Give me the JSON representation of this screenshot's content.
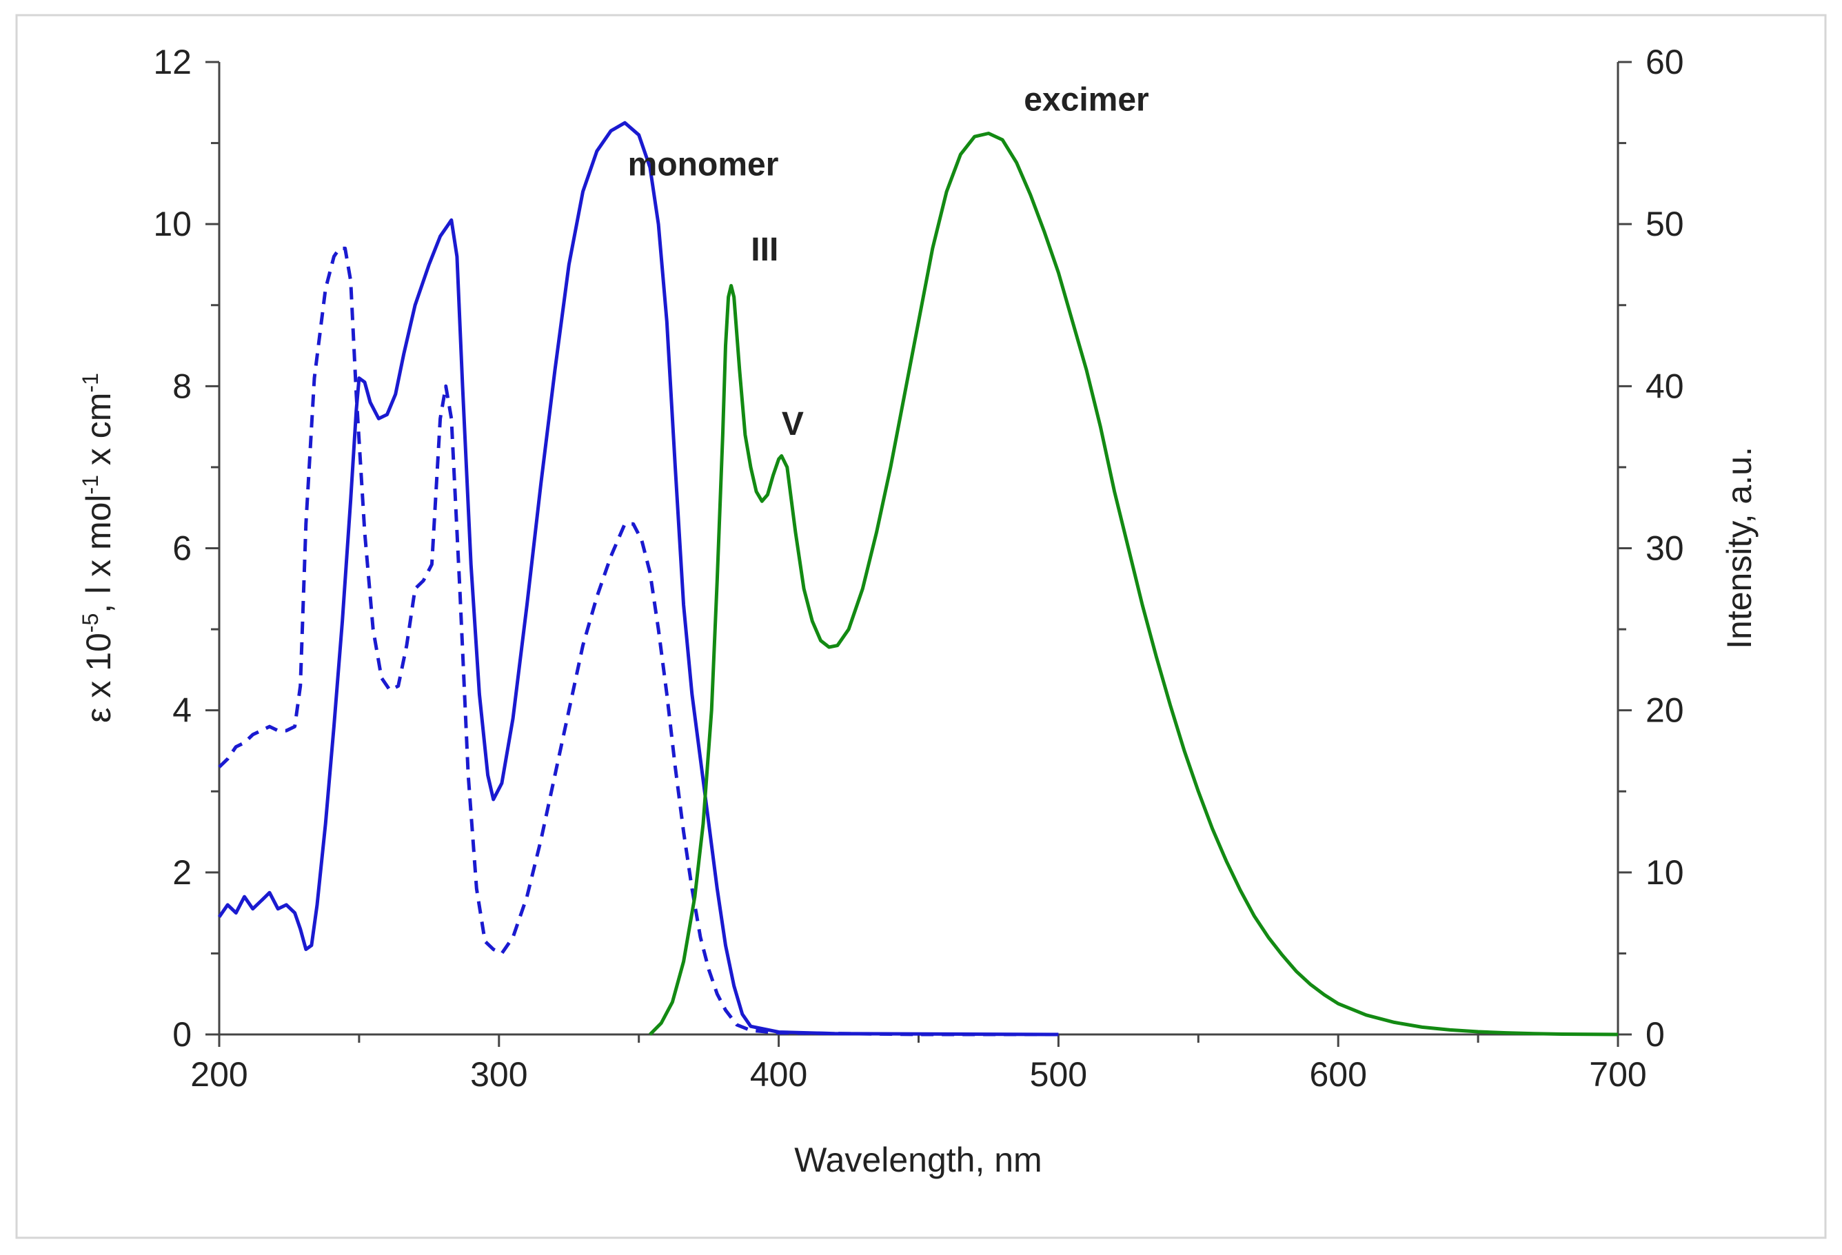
{
  "chart_data": {
    "type": "line",
    "title": "",
    "xlabel": "Wavelength, nm",
    "ylabel_left": "ε x 10",
    "ylabel_left_exp1": "-5",
    "ylabel_left_mid": ", l x mol",
    "ylabel_left_exp2": "-1",
    "ylabel_left_mid2": " x cm",
    "ylabel_left_exp3": "-1",
    "ylabel_right": "Intensity, a.u.",
    "xlim": [
      200,
      700
    ],
    "ylim_left": [
      0,
      12
    ],
    "ylim_right": [
      0,
      60
    ],
    "x_ticks": [
      "200",
      "300",
      "400",
      "500",
      "600",
      "700"
    ],
    "y_ticks_left": [
      "0",
      "2",
      "4",
      "6",
      "8",
      "10",
      "12"
    ],
    "y_ticks_right": [
      "0",
      "10",
      "20",
      "30",
      "40",
      "50",
      "60"
    ],
    "grid": false,
    "legend": "none",
    "colors": {
      "absorption": "#1a1ad0",
      "emission": "#138a13",
      "axis": "#444444"
    },
    "series": [
      {
        "name": "absorption-solid",
        "axis": "left",
        "style": "solid",
        "points": [
          [
            200,
            1.45
          ],
          [
            203,
            1.6
          ],
          [
            206,
            1.5
          ],
          [
            209,
            1.7
          ],
          [
            212,
            1.55
          ],
          [
            215,
            1.65
          ],
          [
            218,
            1.75
          ],
          [
            221,
            1.55
          ],
          [
            224,
            1.6
          ],
          [
            227,
            1.5
          ],
          [
            229,
            1.3
          ],
          [
            231,
            1.05
          ],
          [
            233,
            1.1
          ],
          [
            235,
            1.6
          ],
          [
            238,
            2.6
          ],
          [
            241,
            3.8
          ],
          [
            244,
            5.1
          ],
          [
            247,
            6.6
          ],
          [
            249,
            7.7
          ],
          [
            250,
            8.1
          ],
          [
            252,
            8.05
          ],
          [
            254,
            7.8
          ],
          [
            257,
            7.6
          ],
          [
            260,
            7.65
          ],
          [
            263,
            7.9
          ],
          [
            266,
            8.4
          ],
          [
            270,
            9.0
          ],
          [
            275,
            9.5
          ],
          [
            279,
            9.85
          ],
          [
            282,
            10.0
          ],
          [
            283,
            10.05
          ],
          [
            285,
            9.6
          ],
          [
            287,
            8.0
          ],
          [
            290,
            5.8
          ],
          [
            293,
            4.2
          ],
          [
            296,
            3.2
          ],
          [
            298,
            2.9
          ],
          [
            301,
            3.1
          ],
          [
            305,
            3.9
          ],
          [
            310,
            5.3
          ],
          [
            315,
            6.8
          ],
          [
            320,
            8.2
          ],
          [
            325,
            9.5
          ],
          [
            330,
            10.4
          ],
          [
            335,
            10.9
          ],
          [
            340,
            11.15
          ],
          [
            345,
            11.25
          ],
          [
            350,
            11.1
          ],
          [
            354,
            10.7
          ],
          [
            357,
            10.0
          ],
          [
            360,
            8.8
          ],
          [
            363,
            7.0
          ],
          [
            366,
            5.3
          ],
          [
            369,
            4.2
          ],
          [
            372,
            3.4
          ],
          [
            375,
            2.6
          ],
          [
            378,
            1.8
          ],
          [
            381,
            1.1
          ],
          [
            384,
            0.6
          ],
          [
            387,
            0.25
          ],
          [
            390,
            0.1
          ],
          [
            400,
            0.03
          ],
          [
            420,
            0.01
          ],
          [
            500,
            0.0
          ]
        ]
      },
      {
        "name": "absorption-dashed",
        "axis": "left",
        "style": "dashed",
        "points": [
          [
            200,
            3.3
          ],
          [
            203,
            3.4
          ],
          [
            206,
            3.55
          ],
          [
            209,
            3.6
          ],
          [
            212,
            3.7
          ],
          [
            215,
            3.75
          ],
          [
            218,
            3.8
          ],
          [
            221,
            3.75
          ],
          [
            224,
            3.75
          ],
          [
            227,
            3.8
          ],
          [
            229,
            4.3
          ],
          [
            231,
            6.3
          ],
          [
            234,
            8.1
          ],
          [
            238,
            9.2
          ],
          [
            241,
            9.6
          ],
          [
            243,
            9.7
          ],
          [
            245,
            9.7
          ],
          [
            247,
            9.3
          ],
          [
            249,
            7.9
          ],
          [
            252,
            6.2
          ],
          [
            255,
            5.0
          ],
          [
            258,
            4.4
          ],
          [
            261,
            4.25
          ],
          [
            264,
            4.3
          ],
          [
            267,
            4.8
          ],
          [
            270,
            5.5
          ],
          [
            273,
            5.6
          ],
          [
            276,
            5.8
          ],
          [
            279,
            7.6
          ],
          [
            281,
            8.0
          ],
          [
            283,
            7.6
          ],
          [
            286,
            5.5
          ],
          [
            289,
            3.2
          ],
          [
            292,
            1.8
          ],
          [
            295,
            1.15
          ],
          [
            298,
            1.05
          ],
          [
            301,
            1.0
          ],
          [
            305,
            1.2
          ],
          [
            310,
            1.7
          ],
          [
            315,
            2.4
          ],
          [
            320,
            3.2
          ],
          [
            325,
            4.0
          ],
          [
            330,
            4.8
          ],
          [
            335,
            5.4
          ],
          [
            340,
            5.9
          ],
          [
            345,
            6.3
          ],
          [
            348,
            6.3
          ],
          [
            351,
            6.1
          ],
          [
            354,
            5.7
          ],
          [
            357,
            5.0
          ],
          [
            360,
            4.2
          ],
          [
            363,
            3.3
          ],
          [
            366,
            2.5
          ],
          [
            369,
            1.8
          ],
          [
            372,
            1.2
          ],
          [
            375,
            0.8
          ],
          [
            378,
            0.5
          ],
          [
            381,
            0.3
          ],
          [
            385,
            0.12
          ],
          [
            390,
            0.05
          ],
          [
            400,
            0.02
          ],
          [
            450,
            0.0
          ],
          [
            500,
            0.0
          ]
        ]
      },
      {
        "name": "emission",
        "axis": "right",
        "style": "solid",
        "points": [
          [
            354,
            0.0
          ],
          [
            358,
            0.7
          ],
          [
            362,
            2.0
          ],
          [
            366,
            4.5
          ],
          [
            370,
            8.5
          ],
          [
            373,
            13.0
          ],
          [
            376,
            20.0
          ],
          [
            378,
            28.0
          ],
          [
            380,
            37.0
          ],
          [
            381,
            42.5
          ],
          [
            382,
            45.5
          ],
          [
            383,
            46.2
          ],
          [
            384,
            45.5
          ],
          [
            386,
            41.0
          ],
          [
            388,
            37.0
          ],
          [
            390,
            35.0
          ],
          [
            392,
            33.5
          ],
          [
            394,
            32.9
          ],
          [
            396,
            33.3
          ],
          [
            398,
            34.5
          ],
          [
            400,
            35.5
          ],
          [
            401,
            35.7
          ],
          [
            403,
            35.0
          ],
          [
            406,
            31.0
          ],
          [
            409,
            27.5
          ],
          [
            412,
            25.5
          ],
          [
            415,
            24.3
          ],
          [
            418,
            23.9
          ],
          [
            421,
            24.0
          ],
          [
            425,
            25.0
          ],
          [
            430,
            27.5
          ],
          [
            435,
            31.0
          ],
          [
            440,
            35.0
          ],
          [
            445,
            39.5
          ],
          [
            450,
            44.0
          ],
          [
            455,
            48.5
          ],
          [
            460,
            52.0
          ],
          [
            465,
            54.3
          ],
          [
            470,
            55.4
          ],
          [
            475,
            55.6
          ],
          [
            480,
            55.2
          ],
          [
            485,
            53.8
          ],
          [
            490,
            51.8
          ],
          [
            495,
            49.5
          ],
          [
            500,
            47.0
          ],
          [
            505,
            44.0
          ],
          [
            510,
            41.0
          ],
          [
            515,
            37.5
          ],
          [
            520,
            33.5
          ],
          [
            525,
            30.0
          ],
          [
            530,
            26.5
          ],
          [
            535,
            23.3
          ],
          [
            540,
            20.3
          ],
          [
            545,
            17.5
          ],
          [
            550,
            15.0
          ],
          [
            555,
            12.7
          ],
          [
            560,
            10.7
          ],
          [
            565,
            8.9
          ],
          [
            570,
            7.3
          ],
          [
            575,
            6.0
          ],
          [
            580,
            4.9
          ],
          [
            585,
            3.9
          ],
          [
            590,
            3.1
          ],
          [
            595,
            2.45
          ],
          [
            600,
            1.9
          ],
          [
            610,
            1.2
          ],
          [
            620,
            0.75
          ],
          [
            630,
            0.45
          ],
          [
            640,
            0.28
          ],
          [
            650,
            0.17
          ],
          [
            660,
            0.1
          ],
          [
            670,
            0.05
          ],
          [
            680,
            0.02
          ],
          [
            690,
            0.01
          ],
          [
            700,
            0.0
          ]
        ]
      }
    ],
    "annotations": [
      {
        "text": "monomer",
        "x": 373,
        "y": 10.6,
        "axis": "left"
      },
      {
        "text": "III",
        "x": 395,
        "y": 9.55,
        "axis": "left"
      },
      {
        "text": "V",
        "x": 405,
        "y": 7.4,
        "axis": "left"
      },
      {
        "text": "excimer",
        "x": 510,
        "y": 11.4,
        "axis": "left"
      }
    ]
  }
}
